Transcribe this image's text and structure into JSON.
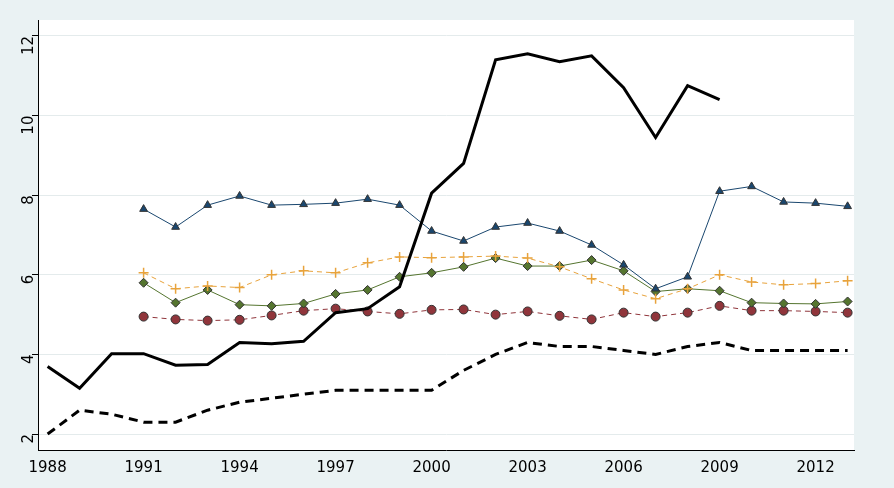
{
  "chart_data": {
    "type": "line",
    "x": [
      1988,
      1989,
      1990,
      1991,
      1992,
      1993,
      1994,
      1995,
      1996,
      1997,
      1998,
      1999,
      2000,
      2001,
      2002,
      2003,
      2004,
      2005,
      2006,
      2007,
      2008,
      2009,
      2010,
      2011,
      2012,
      2013
    ],
    "xlim": [
      1987.7,
      2013.2
    ],
    "xticks": [
      1988,
      1991,
      1994,
      1997,
      2000,
      2003,
      2006,
      2009,
      2012
    ],
    "ylim": [
      1.6,
      12.4
    ],
    "yticks": [
      2,
      4,
      6,
      8,
      10,
      12
    ],
    "grid": true,
    "series": [
      {
        "color": "#000000",
        "line_style": "solid",
        "marker": "none",
        "values": [
          3.7,
          3.15,
          4.02,
          4.02,
          3.73,
          3.75,
          4.3,
          4.27,
          4.33,
          5.05,
          5.15,
          5.7,
          8.05,
          8.8,
          11.4,
          11.55,
          11.35,
          11.5,
          10.7,
          9.45,
          10.75,
          10.4,
          null,
          null,
          null,
          null
        ]
      },
      {
        "color": "#000000",
        "line_style": "dashed",
        "marker": "none",
        "values": [
          2.0,
          2.6,
          2.5,
          2.3,
          2.3,
          2.6,
          2.8,
          2.9,
          3.0,
          3.1,
          3.1,
          3.1,
          3.1,
          3.6,
          4.0,
          4.3,
          4.2,
          4.2,
          4.1,
          4.0,
          4.2,
          4.3,
          4.1,
          4.1,
          4.1,
          4.1
        ]
      },
      {
        "color": "#1a476f",
        "line_style": "solid",
        "marker": "triangle",
        "values": [
          null,
          null,
          null,
          7.65,
          7.2,
          7.75,
          7.98,
          7.75,
          7.77,
          7.8,
          7.9,
          7.75,
          7.1,
          6.85,
          7.2,
          7.3,
          7.1,
          6.75,
          6.25,
          5.65,
          5.95,
          8.1,
          8.22,
          7.83,
          7.8,
          7.72
        ]
      },
      {
        "color": "#e8a33c",
        "line_style": "dashed",
        "marker": "plus",
        "values": [
          null,
          null,
          null,
          6.05,
          5.65,
          5.72,
          5.68,
          6.0,
          6.1,
          6.05,
          6.3,
          6.45,
          6.43,
          6.45,
          6.47,
          6.42,
          6.2,
          5.9,
          5.62,
          5.4,
          5.65,
          6.0,
          5.82,
          5.75,
          5.78,
          5.85
        ]
      },
      {
        "color": "#55752f",
        "line_style": "solid",
        "marker": "diamond",
        "values": [
          null,
          null,
          null,
          5.8,
          5.3,
          5.62,
          5.25,
          5.22,
          5.28,
          5.52,
          5.62,
          5.95,
          6.05,
          6.2,
          6.42,
          6.22,
          6.22,
          6.37,
          6.1,
          5.58,
          5.65,
          5.6,
          5.3,
          5.28,
          5.27,
          5.33
        ]
      },
      {
        "color": "#90353b",
        "line_style": "dashed",
        "marker": "circle",
        "values": [
          null,
          null,
          null,
          4.95,
          4.88,
          4.85,
          4.87,
          4.98,
          5.1,
          5.15,
          5.08,
          5.02,
          5.12,
          5.13,
          5.0,
          5.08,
          4.97,
          4.88,
          5.05,
          4.95,
          5.05,
          5.22,
          5.1,
          5.1,
          5.08,
          5.05
        ]
      }
    ]
  }
}
